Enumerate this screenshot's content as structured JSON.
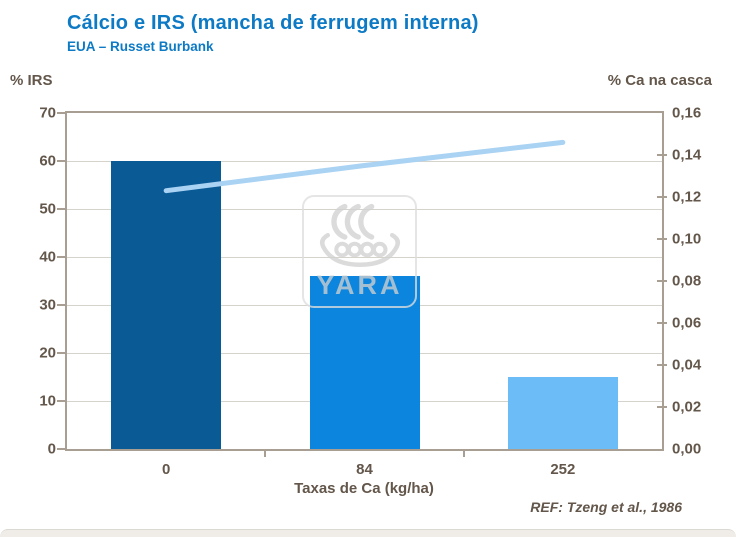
{
  "header": {
    "title": "Cálcio e IRS (mancha de ferrugem interna)",
    "subtitle": "EUA – Russet Burbank"
  },
  "footer": {
    "reference": "REF: Tzeng et al., 1986"
  },
  "watermark": {
    "name": "yara-viking-ship-logo",
    "text": "YARA"
  },
  "chart_data": {
    "type": "bar",
    "title": "Cálcio e IRS (mancha de ferrugem interna)",
    "subtitle": "EUA – Russet Burbank",
    "categories": [
      "0",
      "84",
      "252"
    ],
    "xlabel": "Taxas de Ca (kg/ha)",
    "series": [
      {
        "name": "% IRS",
        "chart": "bar",
        "axis": "left",
        "values": [
          60,
          36,
          15
        ]
      },
      {
        "name": "% Ca na casca",
        "chart": "line",
        "axis": "right",
        "values": [
          0.123,
          0.135,
          0.146
        ]
      }
    ],
    "left_axis": {
      "label": "% IRS",
      "min": 0,
      "max": 70,
      "ticks": [
        {
          "v": 0,
          "label": "0"
        },
        {
          "v": 10,
          "label": "10"
        },
        {
          "v": 20,
          "label": "20"
        },
        {
          "v": 30,
          "label": "30"
        },
        {
          "v": 40,
          "label": "40"
        },
        {
          "v": 50,
          "label": "50"
        },
        {
          "v": 60,
          "label": "60"
        },
        {
          "v": 70,
          "label": "70"
        }
      ]
    },
    "right_axis": {
      "label": "% Ca na casca",
      "min": 0,
      "max": 0.16,
      "ticks": [
        {
          "v": 0.0,
          "label": "0,00"
        },
        {
          "v": 0.02,
          "label": "0,02"
        },
        {
          "v": 0.04,
          "label": "0,04"
        },
        {
          "v": 0.06,
          "label": "0,06"
        },
        {
          "v": 0.08,
          "label": "0,08"
        },
        {
          "v": 0.1,
          "label": "0,10"
        },
        {
          "v": 0.12,
          "label": "0,12"
        },
        {
          "v": 0.14,
          "label": "0,14"
        },
        {
          "v": 0.16,
          "label": "0,16"
        }
      ]
    },
    "grid": "horizontal gridlines at left-axis steps",
    "legend": "none",
    "reference": "REF: Tzeng et al., 1986"
  },
  "colors": {
    "title": "#0d7ac5",
    "axis_text": "#63564a",
    "plot_border": "#a89e92",
    "gridline": "#d6d2cc",
    "bar_colors": [
      "#0a5a96",
      "#0b85dd",
      "#6cbcf8"
    ],
    "line": "#a9d2f3",
    "watermark": "#cfcfcf",
    "footer_strip": "#f0ede8"
  }
}
